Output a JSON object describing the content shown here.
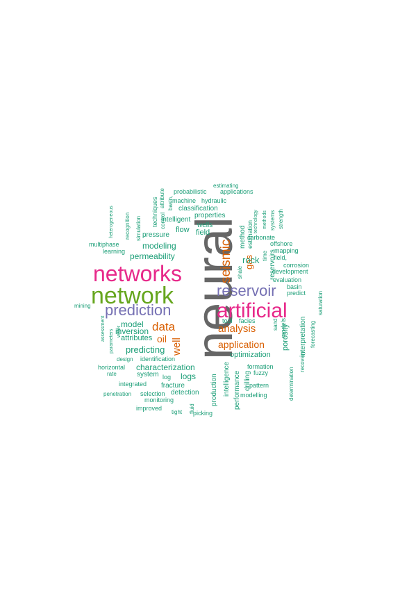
{
  "palette": {
    "teal": "#1b9e77",
    "orange": "#d95f02",
    "purple": "#7570b3",
    "magenta": "#e7298a",
    "green": "#66a61e",
    "gray": "#666666"
  },
  "words": [
    {
      "text": "neural",
      "color": "gray",
      "weight": 10
    },
    {
      "text": "networks",
      "color": "magenta",
      "weight": 8
    },
    {
      "text": "network",
      "color": "green",
      "weight": 8
    },
    {
      "text": "artificial",
      "color": "magenta",
      "weight": 8
    },
    {
      "text": "prediction",
      "color": "purple",
      "weight": 6
    },
    {
      "text": "reservoir",
      "color": "purple",
      "weight": 6
    },
    {
      "text": "seismic",
      "color": "orange",
      "weight": 5
    },
    {
      "text": "data",
      "color": "orange",
      "weight": 5
    },
    {
      "text": "analysis",
      "color": "orange",
      "weight": 4
    },
    {
      "text": "application",
      "color": "orange",
      "weight": 4
    },
    {
      "text": "well",
      "color": "orange",
      "weight": 4
    },
    {
      "text": "gas",
      "color": "orange",
      "weight": 4
    },
    {
      "text": "oil",
      "color": "orange",
      "weight": 4
    },
    {
      "text": "rock",
      "color": "teal",
      "weight": 3
    },
    {
      "text": "modeling",
      "color": "teal",
      "weight": 3
    },
    {
      "text": "permeability",
      "color": "teal",
      "weight": 3
    },
    {
      "text": "predicting",
      "color": "teal",
      "weight": 3
    },
    {
      "text": "model",
      "color": "teal",
      "weight": 3
    },
    {
      "text": "characterization",
      "color": "teal",
      "weight": 3
    },
    {
      "text": "logs",
      "color": "teal",
      "weight": 3
    },
    {
      "text": "inversion",
      "color": "teal",
      "weight": 3
    },
    {
      "text": "attributes",
      "color": "teal",
      "weight": 3
    },
    {
      "text": "porosity",
      "color": "teal",
      "weight": 3
    },
    {
      "text": "method",
      "color": "teal",
      "weight": 2
    },
    {
      "text": "estimation",
      "color": "teal",
      "weight": 2
    },
    {
      "text": "flow",
      "color": "teal",
      "weight": 2
    },
    {
      "text": "field",
      "color": "teal",
      "weight": 2
    },
    {
      "text": "wells",
      "color": "teal",
      "weight": 2
    },
    {
      "text": "properties",
      "color": "teal",
      "weight": 2
    },
    {
      "text": "pressure",
      "color": "teal",
      "weight": 2
    },
    {
      "text": "intelligent",
      "color": "teal",
      "weight": 2
    },
    {
      "text": "classification",
      "color": "teal",
      "weight": 2
    },
    {
      "text": "hydraulic",
      "color": "teal",
      "weight": 2
    },
    {
      "text": "machine",
      "color": "teal",
      "weight": 2
    },
    {
      "text": "probabilistic",
      "color": "teal",
      "weight": 2
    },
    {
      "text": "applications",
      "color": "teal",
      "weight": 2
    },
    {
      "text": "estimating",
      "color": "teal",
      "weight": 2
    },
    {
      "text": "techniques",
      "color": "teal",
      "weight": 2
    },
    {
      "text": "attribute",
      "color": "teal",
      "weight": 2
    },
    {
      "text": "basin,",
      "color": "teal",
      "weight": 2
    },
    {
      "text": "control",
      "color": "teal",
      "weight": 2
    },
    {
      "text": "simulation",
      "color": "teal",
      "weight": 2
    },
    {
      "text": "recognition",
      "color": "teal",
      "weight": 2
    },
    {
      "text": "heterogeneous",
      "color": "teal",
      "weight": 1
    },
    {
      "text": "multiphase",
      "color": "teal",
      "weight": 2
    },
    {
      "text": "learning",
      "color": "teal",
      "weight": 2
    },
    {
      "text": "mining",
      "color": "teal",
      "weight": 1
    },
    {
      "text": "assessment",
      "color": "teal",
      "weight": 1
    },
    {
      "text": "parameters",
      "color": "teal",
      "weight": 1
    },
    {
      "text": "water",
      "color": "teal",
      "weight": 1
    },
    {
      "text": "design",
      "color": "teal",
      "weight": 1
    },
    {
      "text": "identification",
      "color": "teal",
      "weight": 2
    },
    {
      "text": "horizontal",
      "color": "teal",
      "weight": 2
    },
    {
      "text": "rate",
      "color": "teal",
      "weight": 2
    },
    {
      "text": "system",
      "color": "teal",
      "weight": 2
    },
    {
      "text": "log",
      "color": "teal",
      "weight": 2
    },
    {
      "text": "integrated",
      "color": "teal",
      "weight": 2
    },
    {
      "text": "fracture",
      "color": "teal",
      "weight": 2
    },
    {
      "text": "penetration",
      "color": "teal",
      "weight": 1
    },
    {
      "text": "selection",
      "color": "teal",
      "weight": 2
    },
    {
      "text": "detection",
      "color": "teal",
      "weight": 2
    },
    {
      "text": "monitoring",
      "color": "teal",
      "weight": 2
    },
    {
      "text": "improved",
      "color": "teal",
      "weight": 2
    },
    {
      "text": "tight",
      "color": "teal",
      "weight": 1
    },
    {
      "text": "fluid",
      "color": "teal",
      "weight": 1
    },
    {
      "text": "picking",
      "color": "teal",
      "weight": 2
    },
    {
      "text": "production",
      "color": "teal",
      "weight": 2
    },
    {
      "text": "intelligence",
      "color": "teal",
      "weight": 2
    },
    {
      "text": "performance",
      "color": "teal",
      "weight": 2
    },
    {
      "text": "drilling",
      "color": "teal",
      "weight": 2
    },
    {
      "text": "optimization",
      "color": "teal",
      "weight": 2
    },
    {
      "text": "formation",
      "color": "teal",
      "weight": 2
    },
    {
      "text": "fuzzy",
      "color": "teal",
      "weight": 2
    },
    {
      "text": "pattern",
      "color": "teal",
      "weight": 2
    },
    {
      "text": "modelling",
      "color": "teal",
      "weight": 2
    },
    {
      "text": "tool",
      "color": "teal",
      "weight": 2
    },
    {
      "text": "facies",
      "color": "teal",
      "weight": 2
    },
    {
      "text": "sand",
      "color": "teal",
      "weight": 1
    },
    {
      "text": "models",
      "color": "teal",
      "weight": 2
    },
    {
      "text": "determination",
      "color": "teal",
      "weight": 1
    },
    {
      "text": "recovery",
      "color": "teal",
      "weight": 1
    },
    {
      "text": "interpretation",
      "color": "teal",
      "weight": 2
    },
    {
      "text": "forecasting",
      "color": "teal",
      "weight": 1
    },
    {
      "text": "saturation",
      "color": "teal",
      "weight": 1
    },
    {
      "text": "predict",
      "color": "teal",
      "weight": 2
    },
    {
      "text": "basin",
      "color": "teal",
      "weight": 2
    },
    {
      "text": "evaluation",
      "color": "teal",
      "weight": 2
    },
    {
      "text": "corrosion",
      "color": "teal",
      "weight": 2
    },
    {
      "text": "development",
      "color": "teal",
      "weight": 2
    },
    {
      "text": "field,",
      "color": "teal",
      "weight": 2
    },
    {
      "text": "mapping",
      "color": "teal",
      "weight": 2
    },
    {
      "text": "offshore",
      "color": "teal",
      "weight": 2
    },
    {
      "text": "carbonate",
      "color": "teal",
      "weight": 2
    },
    {
      "text": "reservoirs",
      "color": "teal",
      "weight": 2
    },
    {
      "text": "time",
      "color": "teal",
      "weight": 2
    },
    {
      "text": "shale",
      "color": "teal",
      "weight": 1
    },
    {
      "text": "technology",
      "color": "teal",
      "weight": 1
    },
    {
      "text": "methods",
      "color": "teal",
      "weight": 1
    },
    {
      "text": "systems",
      "color": "teal",
      "weight": 1
    },
    {
      "text": "strength",
      "color": "teal",
      "weight": 1
    }
  ]
}
